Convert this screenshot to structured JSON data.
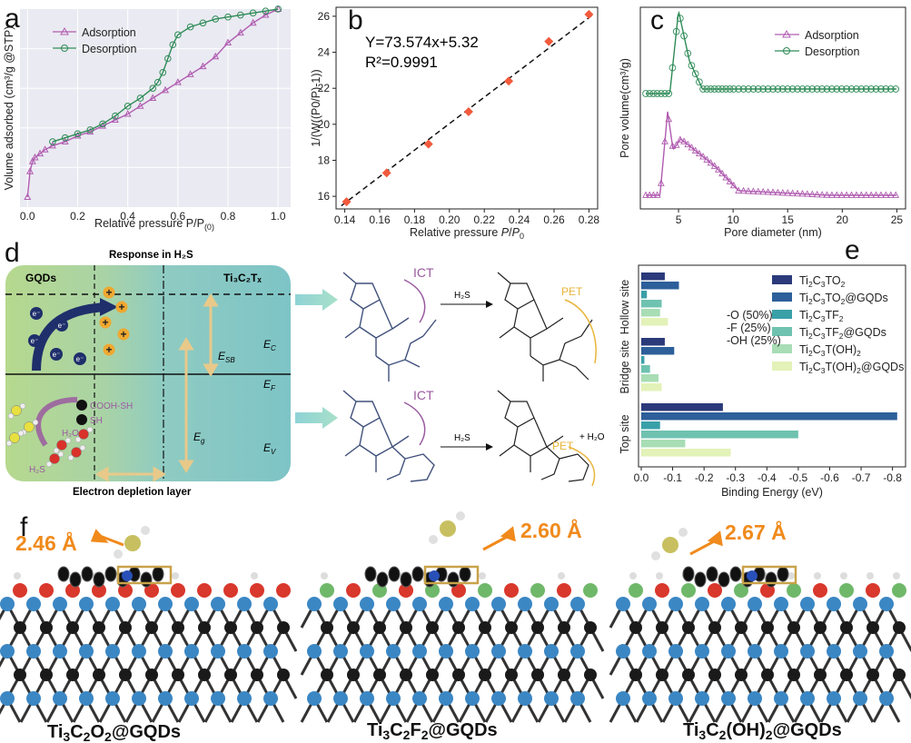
{
  "panel_labels": {
    "a": "a",
    "b": "b",
    "c": "c",
    "d": "d",
    "e": "e",
    "f": "f"
  },
  "colors": {
    "adsorption": "#b05cb0",
    "desorption": "#2e8b57",
    "fit_points": "#f25a3c",
    "grid_bg": "#eaeaf2"
  },
  "chart_data": [
    {
      "id": "a",
      "type": "line",
      "xlabel": "Relative pressure P/P(0)",
      "ylabel": "Volume adsorbed (cm³/g @STP)",
      "xlim": [
        -0.03,
        1.05
      ],
      "ylim": [
        0,
        100
      ],
      "xticks": [
        "0.0",
        "0.2",
        "0.4",
        "0.6",
        "0.8",
        "1.0"
      ],
      "series": [
        {
          "name": "Adsorption",
          "marker": "triangle",
          "x": [
            0.0,
            0.01,
            0.02,
            0.03,
            0.05,
            0.07,
            0.1,
            0.15,
            0.2,
            0.25,
            0.3,
            0.35,
            0.4,
            0.45,
            0.5,
            0.55,
            0.6,
            0.65,
            0.7,
            0.75,
            0.8,
            0.85,
            0.9,
            0.95,
            1.0
          ],
          "y": [
            5,
            18,
            23,
            25,
            27,
            29,
            31,
            33,
            36,
            38,
            41,
            44,
            47,
            51,
            55,
            59,
            63,
            67,
            71,
            76,
            83,
            88,
            93,
            97,
            100
          ]
        },
        {
          "name": "Desorption",
          "marker": "circle",
          "x": [
            1.0,
            0.95,
            0.9,
            0.85,
            0.8,
            0.75,
            0.7,
            0.65,
            0.6,
            0.58,
            0.56,
            0.54,
            0.52,
            0.5,
            0.45,
            0.4,
            0.35,
            0.3,
            0.25,
            0.2,
            0.15,
            0.1
          ],
          "y": [
            100,
            99,
            98,
            97,
            96,
            95,
            93,
            91,
            87,
            82,
            75,
            68,
            63,
            60,
            55,
            51,
            46,
            42,
            39,
            37,
            35,
            33
          ]
        }
      ]
    },
    {
      "id": "b",
      "type": "scatter",
      "xlabel": "Relative pressure P/P0",
      "ylabel": "1/(W((P0/P)-1))",
      "xlim": [
        0.135,
        0.285
      ],
      "ylim": [
        15.3,
        26.5
      ],
      "xticks": [
        "0.14",
        "0.16",
        "0.18",
        "0.20",
        "0.22",
        "0.24",
        "0.26",
        "0.28"
      ],
      "yticks": [
        "16",
        "18",
        "20",
        "22",
        "24",
        "26"
      ],
      "equation": "Y=73.574x+5.32",
      "r2": "R²=0.9991",
      "fit": {
        "slope": 73.574,
        "intercept": 5.32
      },
      "x": [
        0.141,
        0.164,
        0.188,
        0.211,
        0.234,
        0.257,
        0.28
      ],
      "y": [
        15.7,
        17.3,
        18.9,
        20.7,
        22.4,
        24.6,
        26.1
      ]
    },
    {
      "id": "c",
      "type": "line",
      "xlabel": "Pore diameter (nm)",
      "ylabel": "Pore volume(cm³/g)",
      "xlim": [
        1.5,
        25.8
      ],
      "xticks": [
        "5",
        "10",
        "15",
        "20",
        "25"
      ],
      "series": [
        {
          "name": "Adsorption",
          "marker": "triangle"
        },
        {
          "name": "Desorption",
          "marker": "circle"
        }
      ]
    },
    {
      "id": "e",
      "type": "bar",
      "orientation": "horizontal",
      "xlabel": "Binding Energy (eV)",
      "xticks": [
        "0.0",
        "-0.1",
        "-0.2",
        "-0.3",
        "-0.4",
        "-0.5",
        "-0.6",
        "-0.7",
        "-0.8"
      ],
      "xlim": [
        0,
        -0.83
      ],
      "groups": [
        "Hollow site",
        "Bridge site",
        "Top site"
      ],
      "series": [
        {
          "name": "Ti2C3TO2",
          "color": "#2b3a7a",
          "values": [
            -0.075,
            -0.075,
            -0.26
          ]
        },
        {
          "name": "Ti2C3TO2@GQDs",
          "color": "#2d5f9a",
          "values": [
            -0.12,
            -0.105,
            -0.815
          ]
        },
        {
          "name": "Ti2C3TF2",
          "color": "#3aa0a8",
          "values": [
            -0.018,
            -0.01,
            -0.06
          ]
        },
        {
          "name": "Ti2C3TF2@GQDs",
          "color": "#6fc2b0",
          "values": [
            -0.065,
            -0.028,
            -0.5
          ]
        },
        {
          "name": "Ti2C3T(OH)2",
          "color": "#a8ddb5",
          "values": [
            -0.06,
            -0.055,
            -0.14
          ]
        },
        {
          "name": "Ti2C3T(OH)2@GQDs",
          "color": "#e3f2b8",
          "values": [
            -0.085,
            -0.065,
            -0.285
          ]
        }
      ],
      "annotation": [
        "-O (50%)",
        "-F (25%)",
        "-OH (25%)"
      ]
    }
  ],
  "legend_a": {
    "ads": "Adsorption",
    "des": "Desorption"
  },
  "legend_c": {
    "ads": "Adsorption",
    "des": "Desorption"
  },
  "panel_d": {
    "title": "Response in H₂S",
    "gqds": "GQDs",
    "ti3c2tx": "Ti₃C₂Tₓ",
    "ec": "E",
    "ec_sub": "C",
    "ef": "E",
    "ef_sub": "F",
    "ev": "E",
    "ev_sub": "V",
    "esb": "E",
    "esb_sub": "SB",
    "eg": "E",
    "eg_sub": "g",
    "cooh": "COOH-SH",
    "sh": "SH",
    "h2o": "H₂O",
    "h2s": "H₂S",
    "depletion": "Electron depletion layer",
    "ict1": "ICT",
    "ict2": "ICT",
    "pet1": "PET",
    "pet2": "PET",
    "react1": "H₂S",
    "react2": "H₂S",
    "plus_h2o": "+ H₂O",
    "electron": "e⁻",
    "hole": "+"
  },
  "panel_f": {
    "dist1": "2.46 Å",
    "dist2": "2.60 Å",
    "dist3": "2.67 Å",
    "label1": "Ti3C2O2@GQDs",
    "label2": "Ti3C2F2@GQDs",
    "label3": "Ti3C2(OH)2@GQDs"
  }
}
